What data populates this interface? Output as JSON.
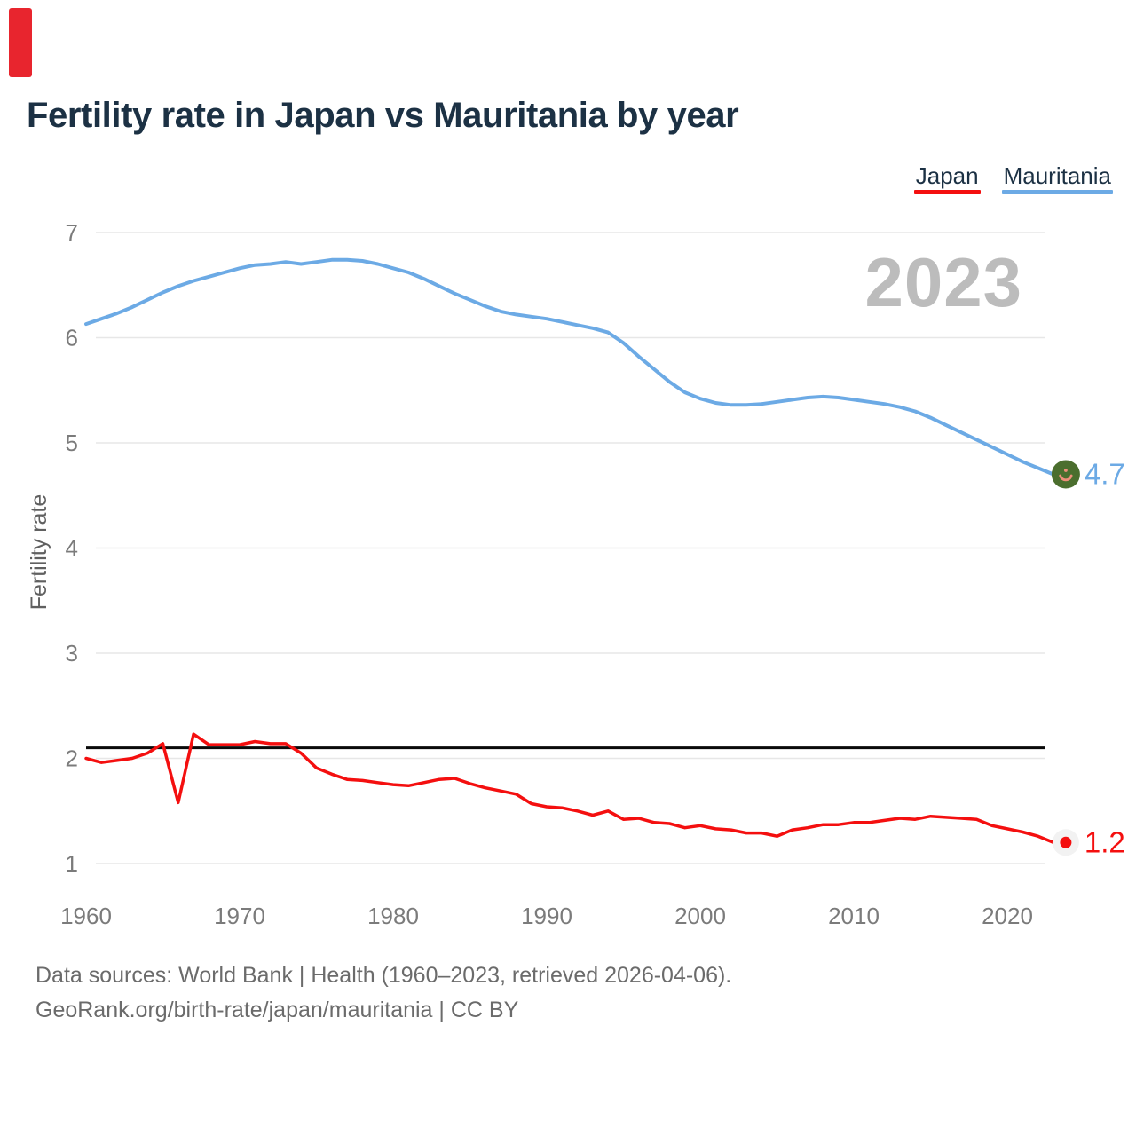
{
  "page": {
    "corner_marker_color": "#e8252e"
  },
  "header": {
    "title": "Fertility rate in Japan vs Mauritania by year"
  },
  "legend": {
    "position": "top-right",
    "items": [
      {
        "label": "Japan",
        "color": "#f40f0f"
      },
      {
        "label": "Mauritania",
        "color": "#6caae5"
      }
    ]
  },
  "watermark": {
    "text": "2023"
  },
  "footer": {
    "line1": "Data sources: World Bank | Health (1960–2023, retrieved 2026-04-06).",
    "line2": "GeoRank.org/birth-rate/japan/mauritania | CC BY"
  },
  "chart_data": {
    "type": "line",
    "title": "Fertility rate in Japan vs Mauritania by year",
    "xlabel": "",
    "ylabel": "Fertility rate",
    "xlim": [
      1960,
      2023
    ],
    "ylim": [
      1,
      7
    ],
    "grid": "horizontal",
    "legend_position": "top-right",
    "yticks": [
      7,
      6,
      5,
      4,
      3,
      2,
      1
    ],
    "xticks": [
      1960,
      1970,
      1980,
      1990,
      2000,
      2010,
      2020
    ],
    "reference_line": {
      "value": 2.1,
      "color": "#0a0a0a"
    },
    "x": [
      1960,
      1961,
      1962,
      1963,
      1964,
      1965,
      1966,
      1967,
      1968,
      1969,
      1970,
      1971,
      1972,
      1973,
      1974,
      1975,
      1976,
      1977,
      1978,
      1979,
      1980,
      1981,
      1982,
      1983,
      1984,
      1985,
      1986,
      1987,
      1988,
      1989,
      1990,
      1991,
      1992,
      1993,
      1994,
      1995,
      1996,
      1997,
      1998,
      1999,
      2000,
      2001,
      2002,
      2003,
      2004,
      2005,
      2006,
      2007,
      2008,
      2009,
      2010,
      2011,
      2012,
      2013,
      2014,
      2015,
      2016,
      2017,
      2018,
      2019,
      2020,
      2021,
      2022,
      2023
    ],
    "series": [
      {
        "name": "Japan",
        "color": "#f40f0f",
        "marker": "japan-flag",
        "end_label": "1.2",
        "values": [
          2.0,
          1.96,
          1.98,
          2.0,
          2.05,
          2.14,
          1.58,
          2.23,
          2.13,
          2.13,
          2.13,
          2.16,
          2.14,
          2.14,
          2.05,
          1.91,
          1.85,
          1.8,
          1.79,
          1.77,
          1.75,
          1.74,
          1.77,
          1.8,
          1.81,
          1.76,
          1.72,
          1.69,
          1.66,
          1.57,
          1.54,
          1.53,
          1.5,
          1.46,
          1.5,
          1.42,
          1.43,
          1.39,
          1.38,
          1.34,
          1.36,
          1.33,
          1.32,
          1.29,
          1.29,
          1.26,
          1.32,
          1.34,
          1.37,
          1.37,
          1.39,
          1.39,
          1.41,
          1.43,
          1.42,
          1.45,
          1.44,
          1.43,
          1.42,
          1.36,
          1.33,
          1.3,
          1.26,
          1.2
        ]
      },
      {
        "name": "Mauritania",
        "color": "#6caae5",
        "marker": "mauritania-flag",
        "end_label": "4.7",
        "values": [
          6.13,
          6.18,
          6.23,
          6.29,
          6.36,
          6.43,
          6.49,
          6.54,
          6.58,
          6.62,
          6.66,
          6.69,
          6.7,
          6.72,
          6.7,
          6.72,
          6.74,
          6.74,
          6.73,
          6.7,
          6.66,
          6.62,
          6.56,
          6.49,
          6.42,
          6.36,
          6.3,
          6.25,
          6.22,
          6.2,
          6.18,
          6.15,
          6.12,
          6.09,
          6.05,
          5.95,
          5.82,
          5.7,
          5.58,
          5.48,
          5.42,
          5.38,
          5.36,
          5.36,
          5.37,
          5.39,
          5.41,
          5.43,
          5.44,
          5.43,
          5.41,
          5.39,
          5.37,
          5.34,
          5.3,
          5.24,
          5.17,
          5.1,
          5.03,
          4.96,
          4.89,
          4.82,
          4.76,
          4.7
        ]
      }
    ]
  }
}
